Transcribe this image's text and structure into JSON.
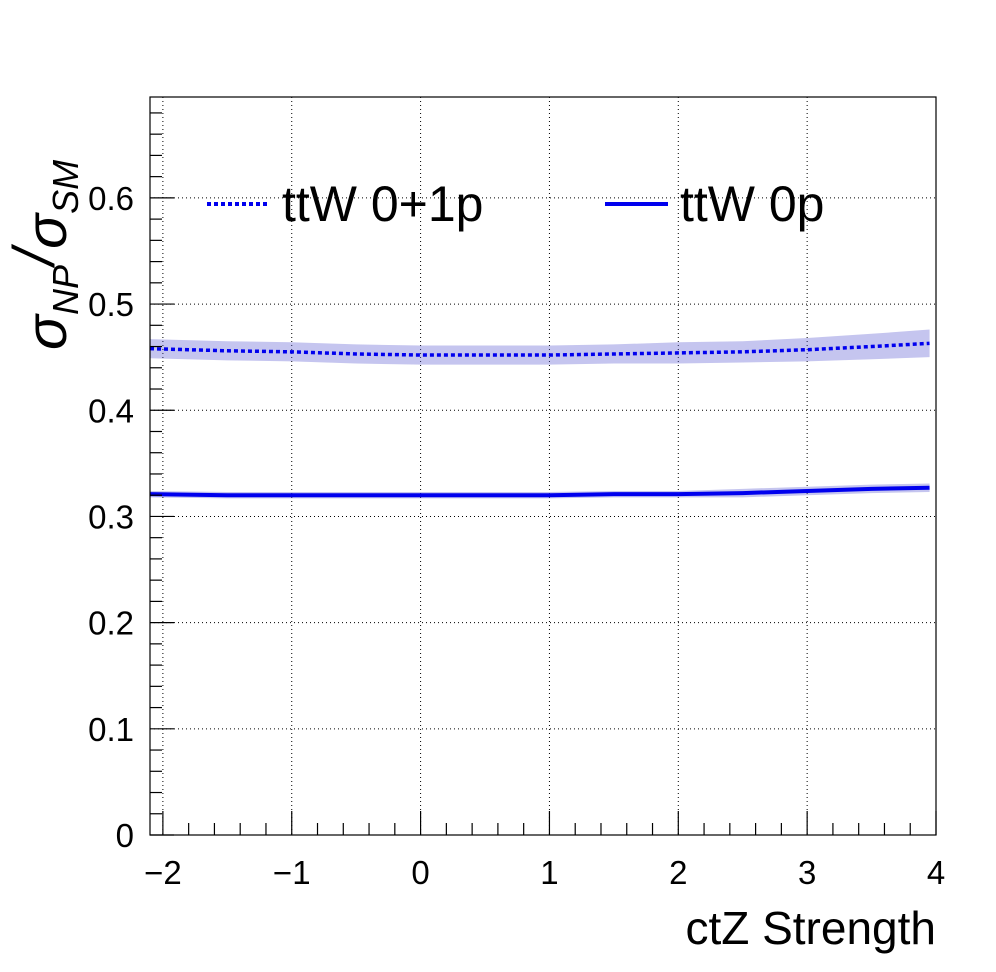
{
  "chart_data": {
    "type": "line",
    "title": "",
    "xlabel": "ctZ Strength",
    "ylabel": {
      "symbol": "σ",
      "numerator_sub": "NP",
      "slash": "/",
      "denominator_sub": "SM"
    },
    "xlim": [
      -2.1,
      4.0
    ],
    "ylim": [
      0,
      0.695
    ],
    "x_ticks": [
      -2,
      -1,
      0,
      1,
      2,
      3,
      4
    ],
    "x_tick_labels": [
      "−2",
      "−1",
      "0",
      "1",
      "2",
      "3",
      "4"
    ],
    "y_ticks": [
      0,
      0.1,
      0.2,
      0.3,
      0.4,
      0.5,
      0.6
    ],
    "y_tick_labels": [
      "0",
      "0.1",
      "0.2",
      "0.3",
      "0.4",
      "0.5",
      "0.6"
    ],
    "grid": true,
    "legend_position": "top",
    "series": [
      {
        "name": "ttW 0+1p",
        "style": "dotted",
        "color": "#0000ee",
        "band_color": "#5a5ad2",
        "x": [
          -2.1,
          -1.5,
          -1.0,
          -0.5,
          0.0,
          0.5,
          1.0,
          1.5,
          2.0,
          2.5,
          3.0,
          3.5,
          3.95
        ],
        "y": [
          0.458,
          0.456,
          0.455,
          0.453,
          0.452,
          0.452,
          0.452,
          0.453,
          0.454,
          0.455,
          0.457,
          0.46,
          0.463
        ],
        "band_half_width": [
          0.009,
          0.009,
          0.009,
          0.009,
          0.009,
          0.009,
          0.009,
          0.009,
          0.01,
          0.01,
          0.011,
          0.012,
          0.013
        ]
      },
      {
        "name": "ttW 0p",
        "style": "solid",
        "color": "#0000ee",
        "band_color": "#5a5ad2",
        "x": [
          -2.1,
          -1.5,
          -1.0,
          -0.5,
          0.0,
          0.5,
          1.0,
          1.5,
          2.0,
          2.5,
          3.0,
          3.5,
          3.95
        ],
        "y": [
          0.321,
          0.32,
          0.32,
          0.32,
          0.32,
          0.32,
          0.32,
          0.321,
          0.321,
          0.322,
          0.324,
          0.326,
          0.327
        ],
        "band_half_width": [
          0.003,
          0.003,
          0.003,
          0.003,
          0.003,
          0.003,
          0.003,
          0.003,
          0.003,
          0.004,
          0.004,
          0.004,
          0.004
        ]
      }
    ]
  }
}
